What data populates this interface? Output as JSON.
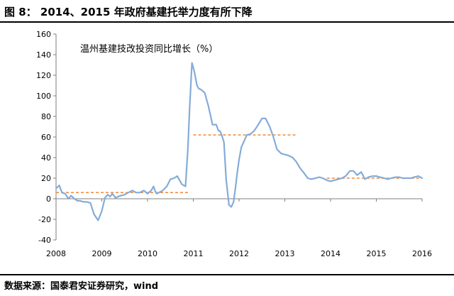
{
  "header": {
    "title": "图 8：  2014、2015 年政府基建托举力度有所下降"
  },
  "footer": {
    "source": "数据来源：国泰君安证券研究，wind"
  },
  "colors": {
    "line": "#84acd8",
    "reference": "#f0883a",
    "axis": "#7f7f7f"
  },
  "chart_data": {
    "type": "line",
    "title": "",
    "xlabel": "",
    "ylabel": "",
    "in_plot_label": "温州基建技改投资同比增长（%）",
    "xlim": [
      2008,
      2016
    ],
    "ylim": [
      -40,
      160
    ],
    "yticks": [
      -40,
      -20,
      0,
      20,
      40,
      60,
      80,
      100,
      120,
      140,
      160
    ],
    "xticks": [
      2008,
      2009,
      2010,
      2011,
      2012,
      2013,
      2014,
      2015,
      2016
    ],
    "grid": false,
    "legend": "none",
    "series": [
      {
        "x": [
          2008.0,
          2008.07,
          2008.13,
          2008.2,
          2008.27,
          2008.33,
          2008.4,
          2008.47,
          2008.53,
          2008.6,
          2008.67,
          2008.75,
          2008.83,
          2008.92,
          2009.0,
          2009.07,
          2009.13,
          2009.18,
          2009.23,
          2009.3,
          2009.35,
          2009.42,
          2009.5,
          2009.58,
          2009.67,
          2009.75,
          2009.83,
          2009.92,
          2010.0,
          2010.08,
          2010.13,
          2010.17,
          2010.2,
          2010.25,
          2010.33,
          2010.42,
          2010.5,
          2010.58,
          2010.65,
          2010.75,
          2010.83,
          2010.88,
          2010.92,
          2010.97,
          2011.02,
          2011.08,
          2011.12,
          2011.17,
          2011.25,
          2011.33,
          2011.42,
          2011.5,
          2011.55,
          2011.58,
          2011.62,
          2011.67,
          2011.72,
          2011.78,
          2011.83,
          2011.88,
          2011.92,
          2011.96,
          2012.0,
          2012.05,
          2012.1,
          2012.17,
          2012.25,
          2012.33,
          2012.42,
          2012.5,
          2012.58,
          2012.67,
          2012.75,
          2012.83,
          2012.92,
          2013.0,
          2013.08,
          2013.17,
          2013.25,
          2013.33,
          2013.42,
          2013.5,
          2013.58,
          2013.67,
          2013.75,
          2013.83,
          2013.92,
          2014.0,
          2014.08,
          2014.17,
          2014.25,
          2014.33,
          2014.42,
          2014.5,
          2014.58,
          2014.67,
          2014.75,
          2014.83,
          2014.92,
          2015.0,
          2015.08,
          2015.17,
          2015.25,
          2015.33,
          2015.42,
          2015.5,
          2015.58,
          2015.67,
          2015.75,
          2015.83,
          2015.92,
          2016.0
        ],
        "values": [
          10,
          13,
          6,
          5,
          0,
          3,
          0,
          -2,
          -2,
          -3,
          -3,
          -4,
          -15,
          -21,
          -12,
          1,
          4,
          2,
          5,
          1,
          2,
          3,
          4,
          6,
          8,
          6,
          6,
          8,
          5,
          8,
          12,
          7,
          5,
          6,
          8,
          12,
          19,
          20,
          22,
          14,
          12,
          48,
          88,
          132,
          124,
          110,
          107,
          106,
          103,
          90,
          72,
          72,
          66,
          66,
          62,
          55,
          18,
          -6,
          -8,
          -3,
          10,
          25,
          38,
          50,
          55,
          62,
          63,
          66,
          72,
          78,
          78,
          70,
          60,
          48,
          44,
          43,
          42,
          40,
          36,
          30,
          25,
          20,
          19,
          20,
          21,
          20,
          18,
          17,
          18,
          19,
          20,
          22,
          27,
          27,
          23,
          26,
          19,
          21,
          22,
          22,
          21,
          20,
          19,
          20,
          21,
          21,
          20,
          20,
          20,
          21,
          22,
          20
        ]
      }
    ],
    "reference_lines": [
      {
        "x_start": 2008.0,
        "x_end": 2010.92,
        "value": 6
      },
      {
        "x_start": 2011.0,
        "x_end": 2013.25,
        "value": 62
      },
      {
        "x_start": 2013.92,
        "x_end": 2016.0,
        "value": 20
      }
    ]
  }
}
